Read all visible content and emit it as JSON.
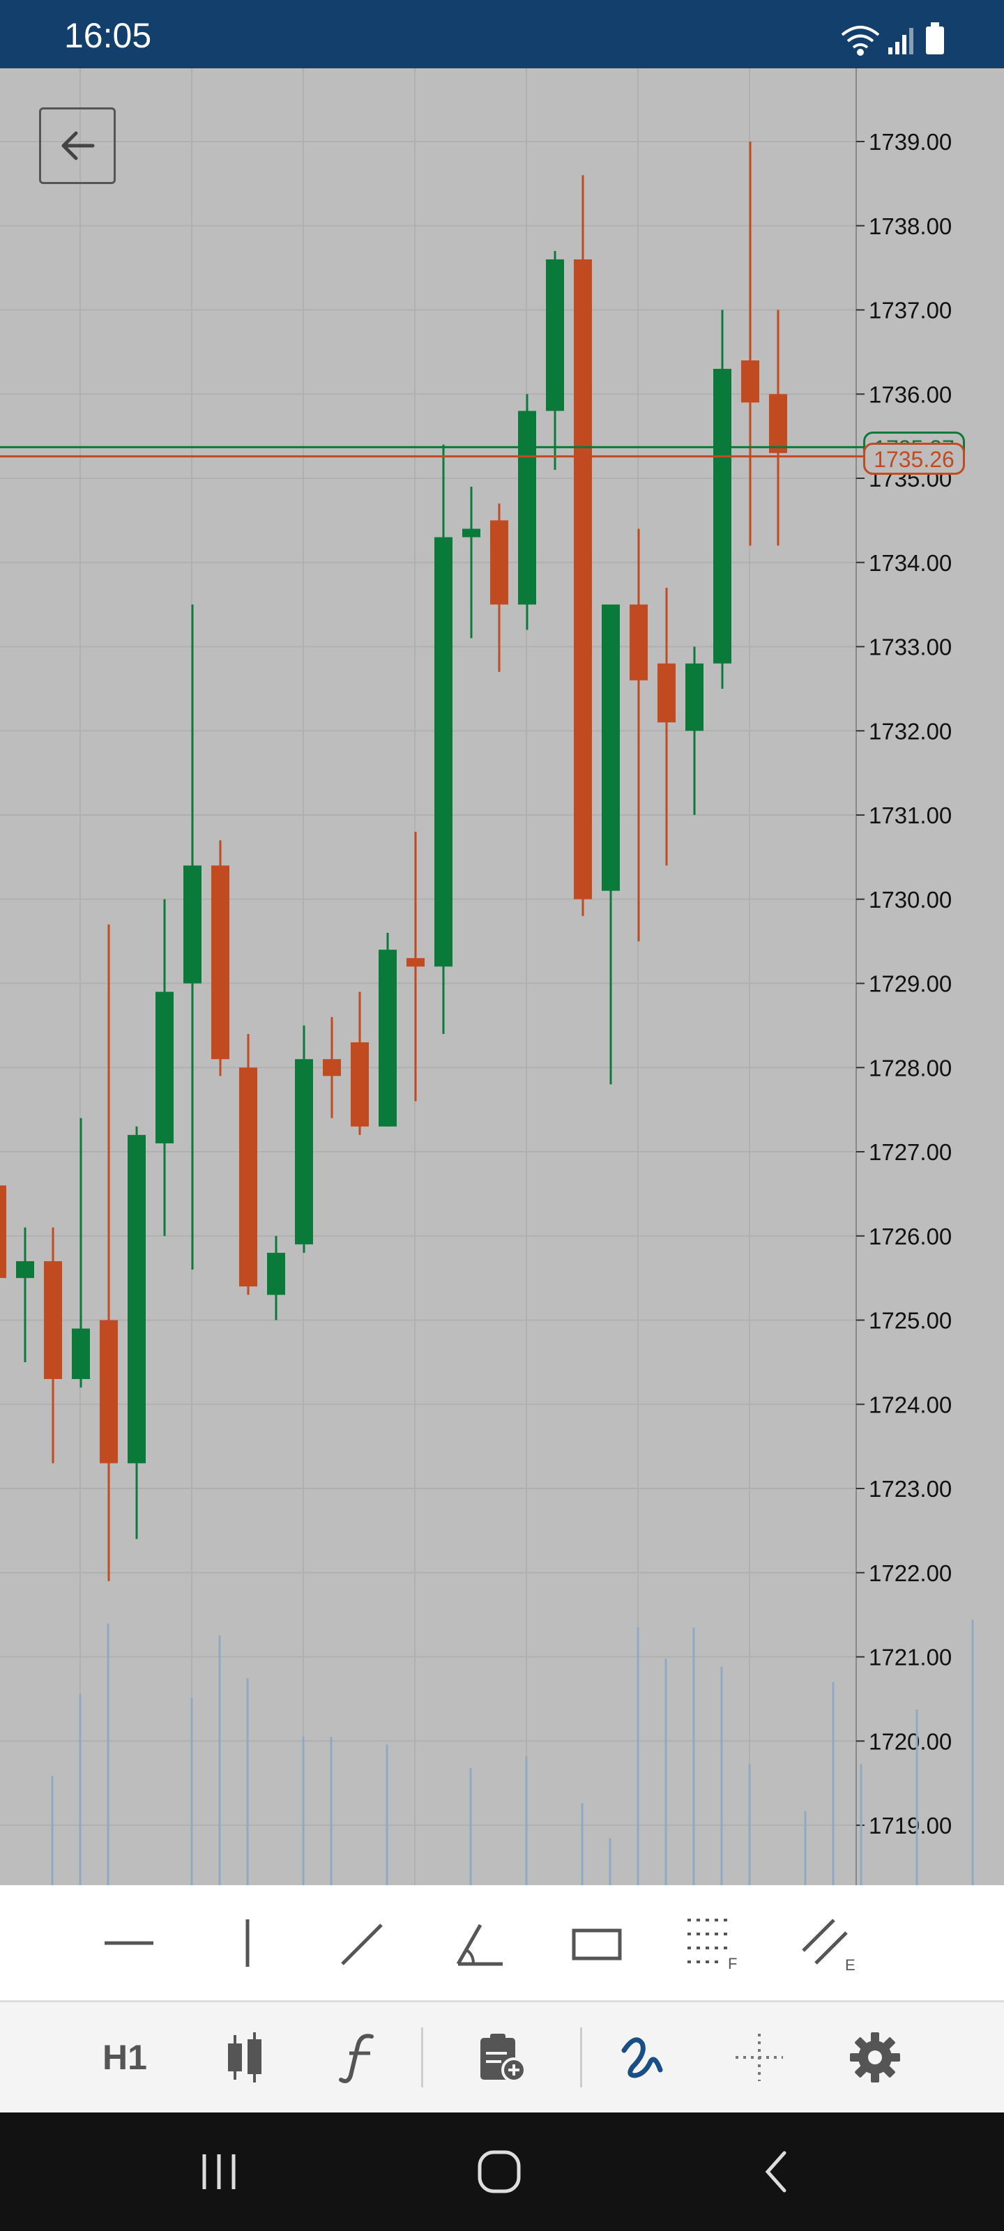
{
  "status_bar": {
    "time": "16:05"
  },
  "chart_data": {
    "type": "candlestick",
    "symbol_timeframe": "H1",
    "y_axis": {
      "min": 1718.0,
      "max": 1739.7,
      "ticks": [
        1739.0,
        1738.0,
        1737.0,
        1736.0,
        1735.0,
        1734.0,
        1733.0,
        1732.0,
        1731.0,
        1730.0,
        1729.0,
        1728.0,
        1727.0,
        1726.0,
        1725.0,
        1724.0,
        1723.0,
        1722.0,
        1721.0,
        1720.0,
        1719.0
      ]
    },
    "tick_labels": [
      "1739.00",
      "1738.00",
      "1737.00",
      "1736.00",
      "1735.00",
      "1734.00",
      "1733.00",
      "1732.00",
      "1731.00",
      "1730.00",
      "1729.00",
      "1728.00",
      "1727.00",
      "1726.00",
      "1725.00",
      "1724.00",
      "1723.00",
      "1722.00",
      "1721.00",
      "1720.00",
      "1719.00"
    ],
    "grid": true,
    "ask_price": "1735.37",
    "bid_price": "1735.26",
    "colors": {
      "bull": "#0a7a3a",
      "bear": "#c24a20",
      "volume": "#8fa9c4",
      "background": "#bdbdbd",
      "grid": "#b0b0b0"
    },
    "candles": [
      {
        "o": 1726.6,
        "h": 1726.6,
        "l": 1725.5,
        "c": 1725.5
      },
      {
        "o": 1725.5,
        "h": 1726.1,
        "l": 1724.5,
        "c": 1725.7
      },
      {
        "o": 1725.7,
        "h": 1726.1,
        "l": 1723.3,
        "c": 1724.3
      },
      {
        "o": 1724.3,
        "h": 1727.4,
        "l": 1724.2,
        "c": 1724.9
      },
      {
        "o": 1725.0,
        "h": 1729.7,
        "l": 1721.9,
        "c": 1723.3
      },
      {
        "o": 1723.3,
        "h": 1727.3,
        "l": 1722.4,
        "c": 1727.2
      },
      {
        "o": 1727.1,
        "h": 1730.0,
        "l": 1726.0,
        "c": 1728.9
      },
      {
        "o": 1729.0,
        "h": 1733.5,
        "l": 1725.6,
        "c": 1730.4
      },
      {
        "o": 1730.4,
        "h": 1730.7,
        "l": 1727.9,
        "c": 1728.1
      },
      {
        "o": 1728.0,
        "h": 1728.4,
        "l": 1725.3,
        "c": 1725.4
      },
      {
        "o": 1725.3,
        "h": 1726.0,
        "l": 1725.0,
        "c": 1725.8
      },
      {
        "o": 1725.9,
        "h": 1728.5,
        "l": 1725.8,
        "c": 1728.1
      },
      {
        "o": 1728.1,
        "h": 1728.6,
        "l": 1727.4,
        "c": 1727.9
      },
      {
        "o": 1728.3,
        "h": 1728.9,
        "l": 1727.2,
        "c": 1727.3
      },
      {
        "o": 1727.3,
        "h": 1729.6,
        "l": 1727.3,
        "c": 1729.4
      },
      {
        "o": 1729.3,
        "h": 1730.8,
        "l": 1727.6,
        "c": 1729.2
      },
      {
        "o": 1729.2,
        "h": 1735.4,
        "l": 1728.4,
        "c": 1734.3
      },
      {
        "o": 1734.3,
        "h": 1734.9,
        "l": 1733.1,
        "c": 1734.4
      },
      {
        "o": 1734.5,
        "h": 1734.7,
        "l": 1732.7,
        "c": 1733.5
      },
      {
        "o": 1733.5,
        "h": 1736.0,
        "l": 1733.2,
        "c": 1735.8
      },
      {
        "o": 1735.8,
        "h": 1737.7,
        "l": 1735.1,
        "c": 1737.6
      },
      {
        "o": 1737.6,
        "h": 1738.6,
        "l": 1729.8,
        "c": 1730.0
      },
      {
        "o": 1730.1,
        "h": 1733.5,
        "l": 1727.8,
        "c": 1733.5
      },
      {
        "o": 1733.5,
        "h": 1734.4,
        "l": 1729.5,
        "c": 1732.6
      },
      {
        "o": 1732.8,
        "h": 1733.7,
        "l": 1730.4,
        "c": 1732.1
      },
      {
        "o": 1732.0,
        "h": 1733.0,
        "l": 1731.0,
        "c": 1732.8
      },
      {
        "o": 1732.8,
        "h": 1737.0,
        "l": 1732.5,
        "c": 1736.3
      },
      {
        "o": 1736.4,
        "h": 1739.0,
        "l": 1734.2,
        "c": 1735.9
      },
      {
        "o": 1736.0,
        "h": 1737.0,
        "l": 1734.2,
        "c": 1735.3
      }
    ],
    "volumes": [
      0,
      0.28,
      0.49,
      0.67,
      0,
      0,
      0.48,
      0.64,
      0.53,
      0,
      0.38,
      0.38,
      0.0,
      0.36,
      0,
      0,
      0.3,
      0,
      0.33,
      0,
      0.21,
      0.12,
      0.66,
      0.58,
      0.66,
      0.56,
      0.31,
      0,
      0.19,
      0.52,
      0.31,
      0,
      0.45,
      0,
      0.68
    ]
  },
  "toolbar_tools": {
    "horizontal_line": "horizontal-line-tool",
    "vertical_line": "vertical-line-tool",
    "trend_line": "trend-line-tool",
    "angle": "angle-tool",
    "rectangle": "rectangle-tool",
    "fibonacci_label": "F",
    "equidistant_label": "E"
  },
  "bottom_toolbar": {
    "timeframe": "H1"
  }
}
